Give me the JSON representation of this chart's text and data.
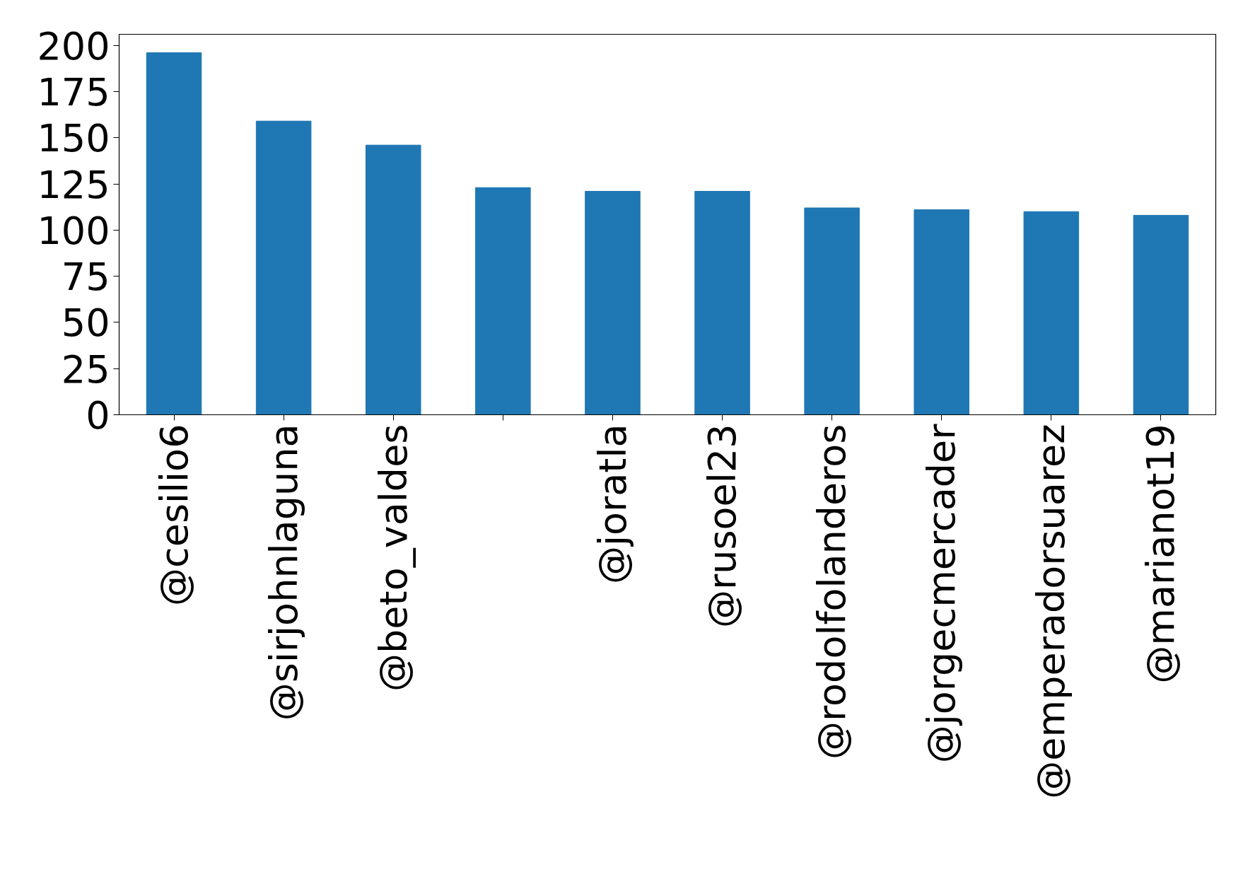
{
  "chart_data": {
    "type": "bar",
    "categories": [
      "@cesilio6",
      "@sirjohnlaguna",
      "@beto_valdes",
      null,
      "@joratla",
      "@rusoel23",
      "@rodolfolanderos",
      "@jorgecmercader",
      "@emperadorsuarez",
      "@marianot19"
    ],
    "values": [
      196,
      159,
      146,
      123,
      121,
      121,
      112,
      111,
      110,
      108
    ],
    "color": "#1f77b4",
    "ylim": [
      0,
      206
    ],
    "yticks": [
      0,
      25,
      50,
      75,
      100,
      125,
      150,
      175,
      200
    ],
    "grid": false
  }
}
